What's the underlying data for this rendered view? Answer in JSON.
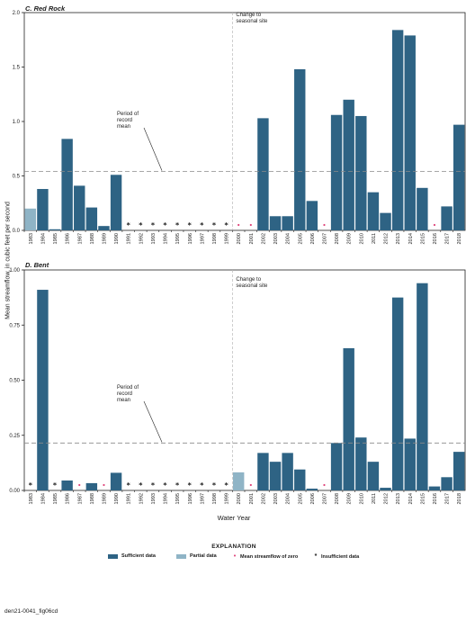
{
  "figure_id": "den21-0041_fig06cd",
  "y_axis_label": "Mean streamflow, in cubic feet per second",
  "x_axis_label": "Water Year",
  "explanation": {
    "title": "EXPLANATION",
    "items": {
      "sufficient": "Sufficient data",
      "partial": "Partial data",
      "zero": "Mean streamflow of zero",
      "insufficient": "Insufficient data"
    }
  },
  "colors": {
    "sufficient": "#2e6384",
    "partial": "#8fb4c6",
    "zero_marker": "#e0457b",
    "insufficient_marker": "#1a1a1a",
    "reference_lines": "#8a8a8a"
  },
  "chart_data": [
    {
      "type": "bar",
      "title": "C. Red Rock",
      "categories": [
        "1983",
        "1984",
        "1985",
        "1986",
        "1987",
        "1988",
        "1989",
        "1990",
        "1991",
        "1992",
        "1993",
        "1994",
        "1995",
        "1996",
        "1997",
        "1998",
        "1999",
        "2000",
        "2001",
        "2002",
        "2003",
        "2004",
        "2005",
        "2006",
        "2007",
        "2008",
        "2009",
        "2010",
        "2011",
        "2012",
        "2013",
        "2014",
        "2015",
        "2016",
        "2017",
        "2018"
      ],
      "values": [
        0.2,
        0.38,
        0.01,
        0.84,
        0.41,
        0.21,
        0.04,
        0.51,
        null,
        null,
        null,
        null,
        null,
        null,
        null,
        null,
        null,
        null,
        null,
        1.03,
        0.13,
        0.13,
        1.48,
        0.27,
        null,
        1.06,
        1.2,
        1.05,
        0.35,
        0.16,
        1.84,
        1.79,
        0.39,
        null,
        0.22,
        0.97
      ],
      "status": [
        "partial",
        "sufficient",
        "sufficient",
        "sufficient",
        "sufficient",
        "sufficient",
        "sufficient",
        "sufficient",
        "insufficient",
        "insufficient",
        "insufficient",
        "insufficient",
        "insufficient",
        "insufficient",
        "insufficient",
        "insufficient",
        "insufficient",
        "zero",
        "zero",
        "sufficient",
        "sufficient",
        "sufficient",
        "sufficient",
        "sufficient",
        "zero",
        "sufficient",
        "sufficient",
        "sufficient",
        "sufficient",
        "sufficient",
        "sufficient",
        "sufficient",
        "sufficient",
        "zero",
        "sufficient",
        "sufficient"
      ],
      "ylim": [
        0,
        2.0
      ],
      "yticks": [
        "0.0",
        "0.5",
        "1.0",
        "1.5",
        "2.0"
      ],
      "record_mean": 0.54,
      "record_mean_label": "Period of\nrecord\nmean",
      "change_label": "Change to\nseasonal site",
      "change_after": "1999"
    },
    {
      "type": "bar",
      "title": "D. Bent",
      "categories": [
        "1983",
        "1984",
        "1985",
        "1986",
        "1987",
        "1988",
        "1989",
        "1990",
        "1991",
        "1992",
        "1993",
        "1994",
        "1995",
        "1996",
        "1997",
        "1998",
        "1999",
        "2000",
        "2001",
        "2002",
        "2003",
        "2004",
        "2005",
        "2006",
        "2007",
        "2008",
        "2009",
        "2010",
        "2011",
        "2012",
        "2013",
        "2014",
        "2015",
        "2016",
        "2017",
        "2018"
      ],
      "values": [
        null,
        0.91,
        null,
        0.045,
        null,
        0.033,
        null,
        0.08,
        null,
        null,
        null,
        null,
        null,
        null,
        null,
        null,
        null,
        0.082,
        null,
        0.17,
        0.13,
        0.17,
        0.095,
        0.008,
        null,
        0.215,
        0.645,
        0.24,
        0.13,
        0.012,
        0.875,
        0.235,
        0.94,
        0.018,
        0.06,
        0.175
      ],
      "status": [
        "insufficient",
        "sufficient",
        "insufficient",
        "sufficient",
        "zero",
        "sufficient",
        "zero",
        "sufficient",
        "insufficient",
        "insufficient",
        "insufficient",
        "insufficient",
        "insufficient",
        "insufficient",
        "insufficient",
        "insufficient",
        "insufficient",
        "partial",
        "zero",
        "sufficient",
        "sufficient",
        "sufficient",
        "sufficient",
        "sufficient",
        "zero",
        "sufficient",
        "sufficient",
        "sufficient",
        "sufficient",
        "sufficient",
        "sufficient",
        "sufficient",
        "sufficient",
        "sufficient",
        "sufficient",
        "sufficient"
      ],
      "ylim": [
        0,
        1.0
      ],
      "yticks": [
        "0.00",
        "0.25",
        "0.50",
        "0.75",
        "1.00"
      ],
      "record_mean": 0.215,
      "record_mean_label": "Period of\nrecord\nmean",
      "change_label": "Change to\nseasonal site",
      "change_after": "1999"
    }
  ]
}
